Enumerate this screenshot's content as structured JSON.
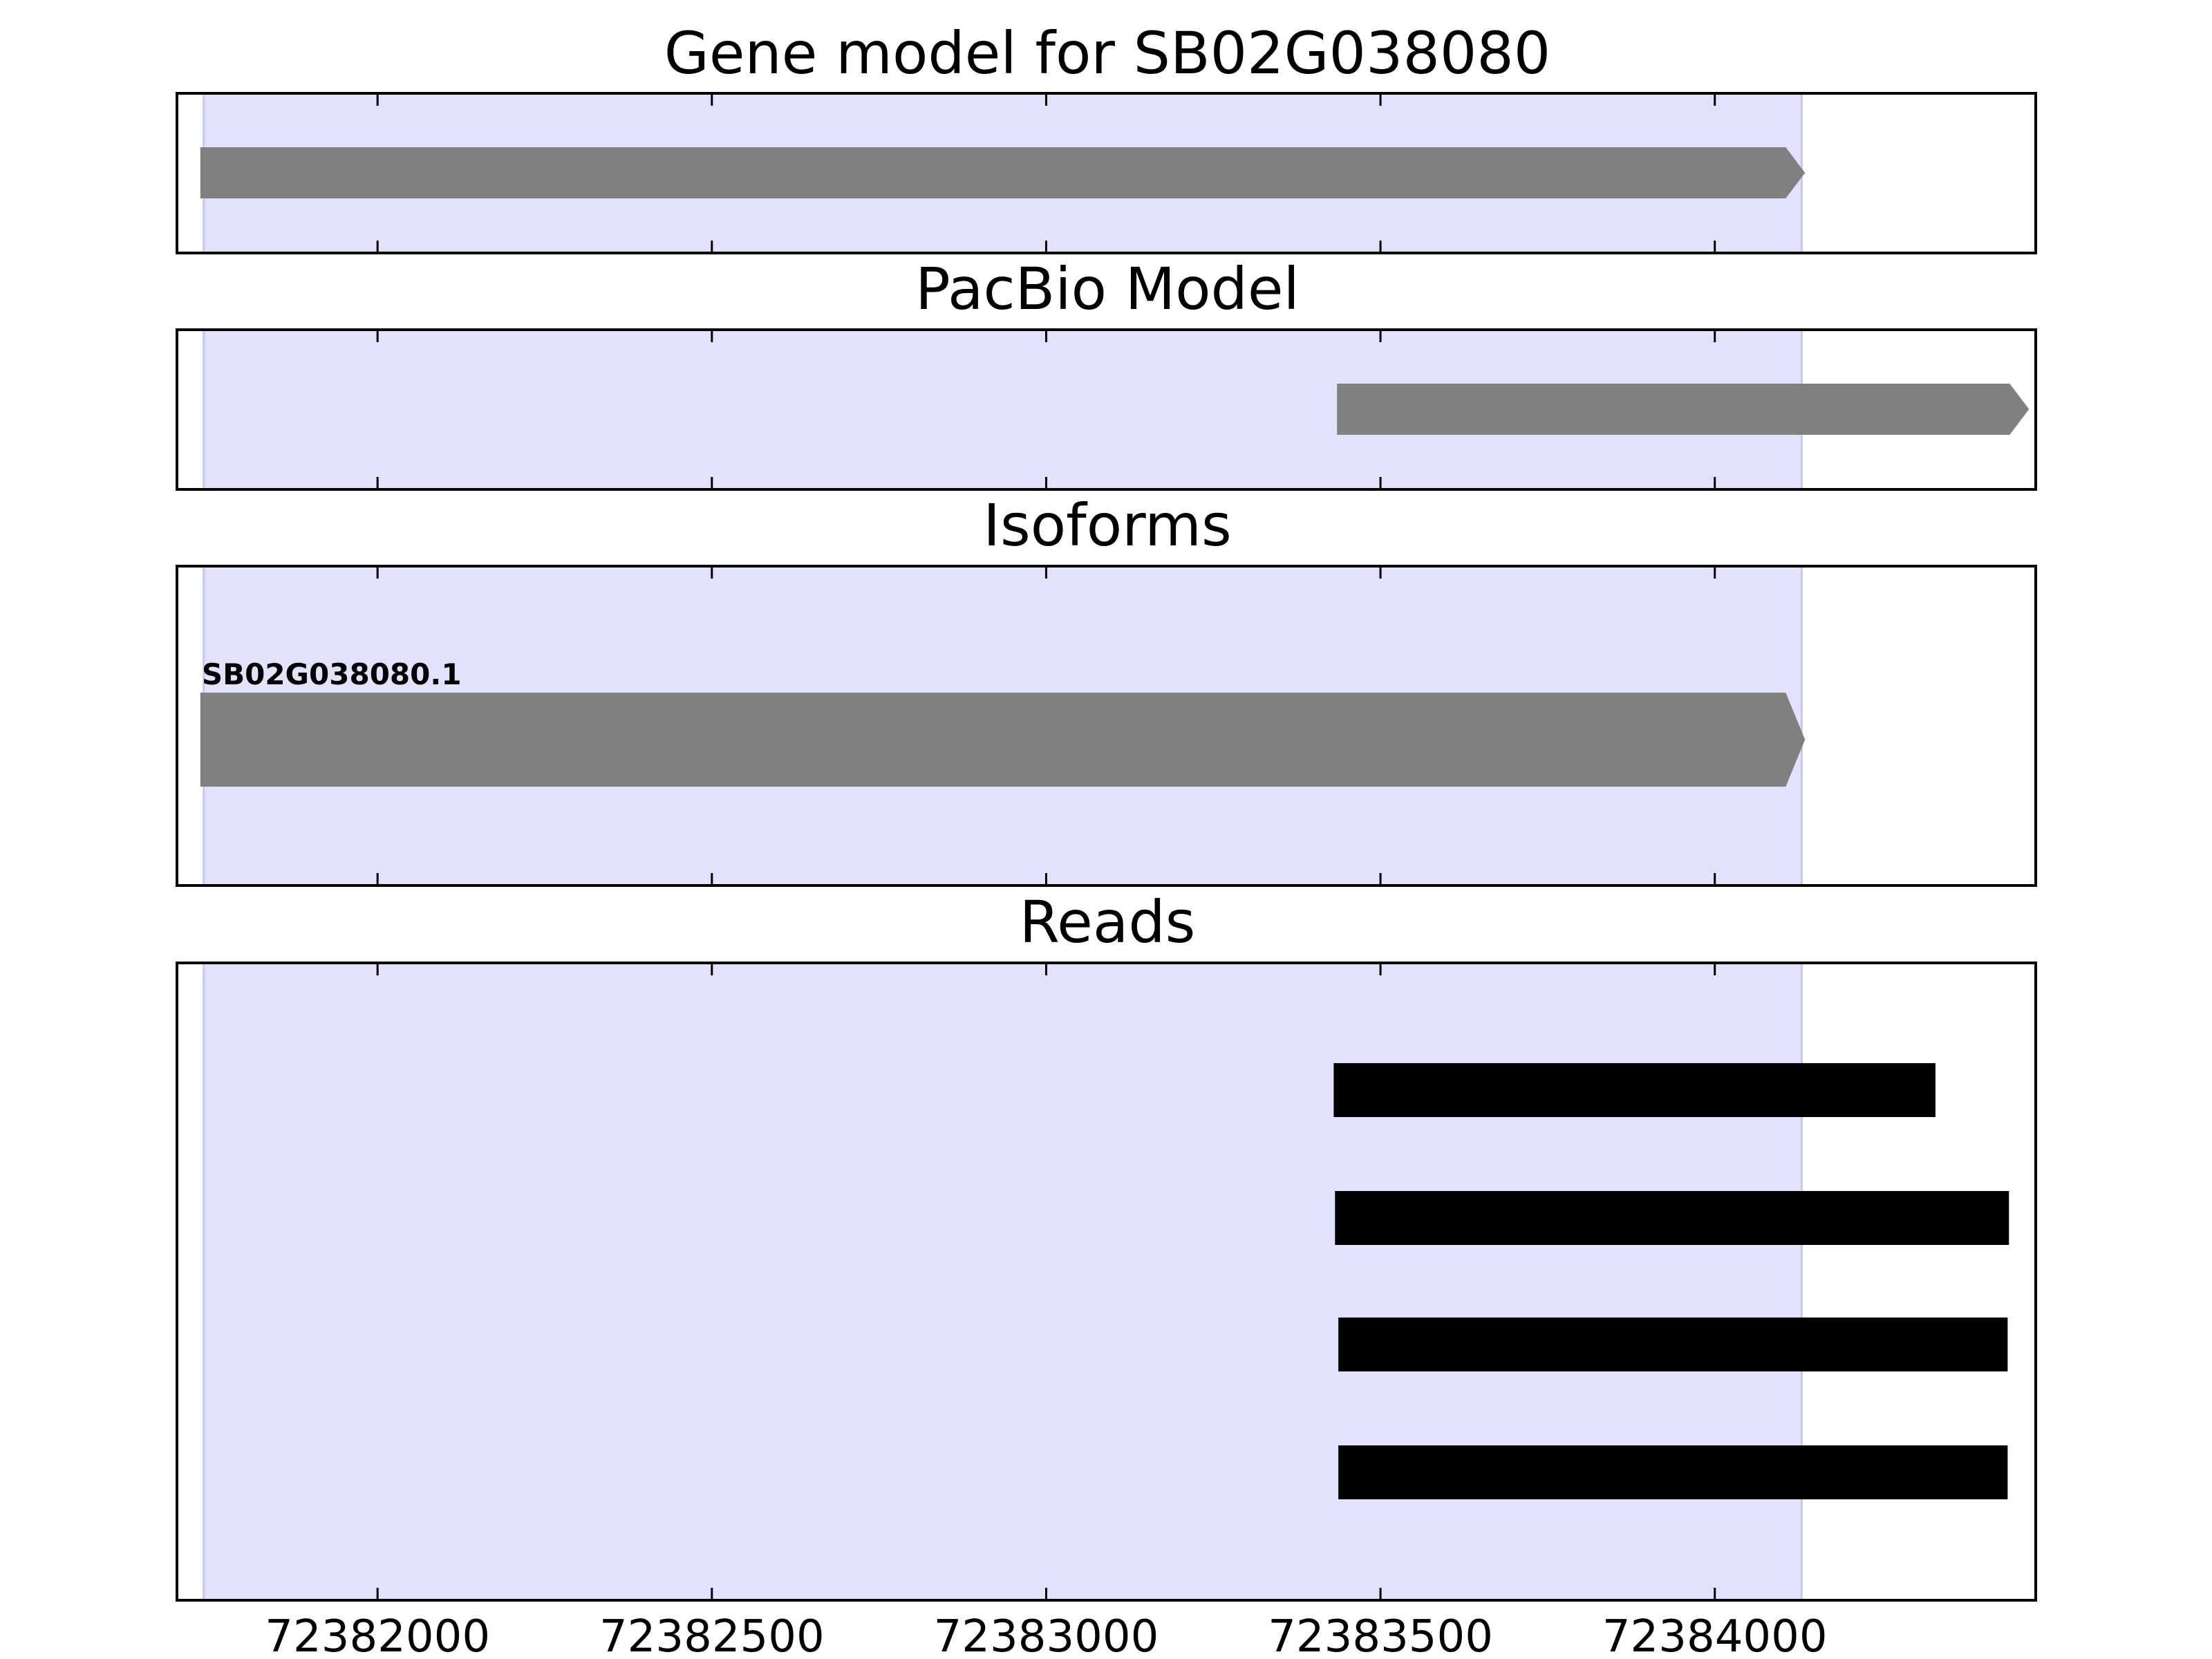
{
  "chart_data": {
    "type": "gene-track",
    "x_range": [
      72381700,
      72384480
    ],
    "gene_region": [
      72381740,
      72384130
    ],
    "colors": {
      "gene_region": "#e2e2fd",
      "model_feature": "#808080",
      "read": "#000000",
      "frame": "#000000"
    },
    "xticks": [
      {
        "value": 72382000,
        "label": "72382000"
      },
      {
        "value": 72382500,
        "label": "72382500"
      },
      {
        "value": 72383000,
        "label": "72383000"
      },
      {
        "value": 72383500,
        "label": "72383500"
      },
      {
        "value": 72384000,
        "label": "72384000"
      }
    ],
    "panels": [
      {
        "key": "gene",
        "title": "Gene model for SB02G038080",
        "features": [
          {
            "kind": "arrow",
            "start": 72381735,
            "end": 72384135,
            "strand": "+"
          }
        ]
      },
      {
        "key": "pacbio",
        "title": "PacBio Model",
        "features": [
          {
            "kind": "arrow",
            "start": 72383435,
            "end": 72384470,
            "strand": "+"
          }
        ]
      },
      {
        "key": "isoforms",
        "title": "Isoforms",
        "features": [
          {
            "kind": "arrow",
            "start": 72381735,
            "end": 72384135,
            "strand": "+",
            "label": "SB02G038080.1"
          }
        ]
      },
      {
        "key": "reads",
        "title": "Reads",
        "features": [
          {
            "kind": "bar",
            "start": 72383430,
            "end": 72384330
          },
          {
            "kind": "bar",
            "start": 72383432,
            "end": 72384440
          },
          {
            "kind": "bar",
            "start": 72383437,
            "end": 72384438
          },
          {
            "kind": "bar",
            "start": 72383437,
            "end": 72384438
          }
        ]
      }
    ]
  }
}
